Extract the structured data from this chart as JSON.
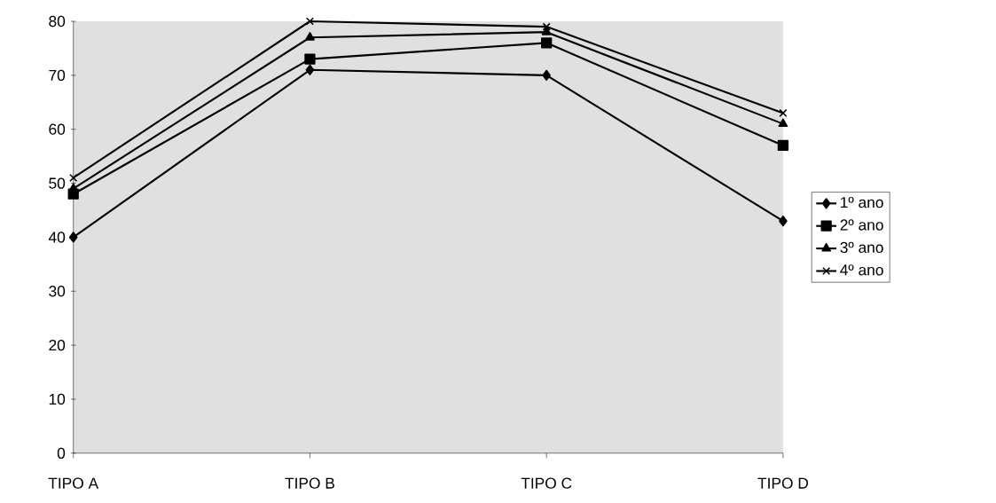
{
  "chart_data": {
    "type": "line",
    "categories": [
      "TIPO A",
      "TIPO B",
      "TIPO C",
      "TIPO D"
    ],
    "ylim": [
      0,
      80
    ],
    "yticks": [
      0,
      10,
      20,
      30,
      40,
      50,
      60,
      70,
      80
    ],
    "legend": "right",
    "grid": false,
    "series": [
      {
        "name": "1º ano",
        "color": "#000000",
        "marker": "diamond",
        "values": [
          40,
          71,
          70,
          43
        ]
      },
      {
        "name": "2º ano",
        "color": "#000000",
        "marker": "square",
        "values": [
          48,
          73,
          76,
          57
        ]
      },
      {
        "name": "3º ano",
        "color": "#000000",
        "marker": "triangle",
        "values": [
          49,
          77,
          78,
          61
        ]
      },
      {
        "name": "4º ano",
        "color": "#000000",
        "marker": "cross",
        "values": [
          51,
          80,
          79,
          63
        ]
      }
    ]
  }
}
